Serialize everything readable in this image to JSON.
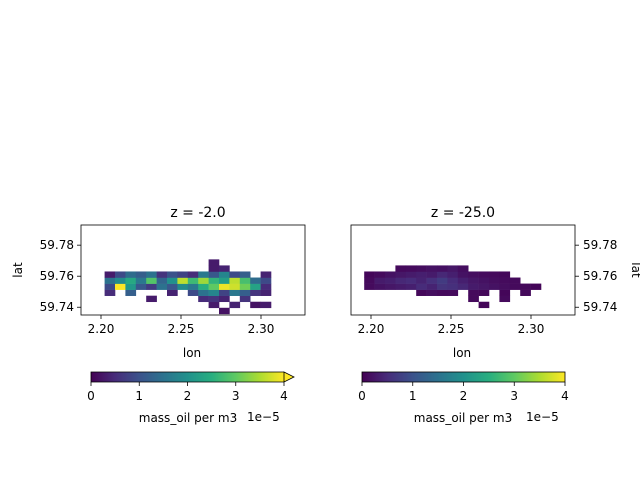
{
  "figure": {
    "background": "#ffffff"
  },
  "chart_data": [
    {
      "type": "heatmap",
      "title": "z = -2.0",
      "xlabel": "lon",
      "ylabel": "lat",
      "xticks": [
        2.2,
        2.25,
        2.3
      ],
      "xtick_labels": [
        "2.20",
        "2.25",
        "2.30"
      ],
      "yticks": [
        59.74,
        59.76,
        59.78
      ],
      "ytick_labels": [
        "59.74",
        "59.76",
        "59.78"
      ],
      "xlim": [
        2.1875,
        2.3275
      ],
      "ylim": [
        59.735,
        59.793
      ],
      "y_axis_side": "left",
      "grid": false,
      "colormap": "viridis",
      "cell_lon": [
        2.2055,
        2.212,
        2.2185,
        2.225,
        2.2315,
        2.238,
        2.2445,
        2.251,
        2.2575,
        2.264,
        2.2705,
        2.277,
        2.2835,
        2.29,
        2.2965,
        2.303
      ],
      "cell_lat": [
        59.7377,
        59.7416,
        59.7455,
        59.7494,
        59.7533,
        59.7572,
        59.7611,
        59.765,
        59.7689
      ],
      "cell_lon_step": 0.0065,
      "cell_lat_step": 0.0039,
      "values_1e5": [
        [
          null,
          null,
          null,
          null,
          null,
          null,
          null,
          null,
          null,
          null,
          null,
          0.2,
          null,
          null,
          null,
          null
        ],
        [
          null,
          null,
          null,
          null,
          null,
          null,
          null,
          null,
          null,
          null,
          0.3,
          null,
          0.4,
          null,
          0.2,
          0.3
        ],
        [
          null,
          null,
          null,
          null,
          0.3,
          null,
          null,
          null,
          null,
          0.5,
          0.6,
          0.4,
          null,
          0.6,
          null,
          null
        ],
        [
          0.5,
          null,
          1.2,
          null,
          null,
          null,
          0.4,
          null,
          0.9,
          1.5,
          1.8,
          0.8,
          1.6,
          1.2,
          0.6,
          0.4
        ],
        [
          0.9,
          4.0,
          2.1,
          1.1,
          0.7,
          1.5,
          1.1,
          1.9,
          1.6,
          2.5,
          3.0,
          3.9,
          3.7,
          3.1,
          2.3,
          0.5
        ],
        [
          1.5,
          1.9,
          2.4,
          1.6,
          2.9,
          1.3,
          2.0,
          3.6,
          2.7,
          3.4,
          2.6,
          2.2,
          3.6,
          2.8,
          1.4,
          0.9
        ],
        [
          0.3,
          0.9,
          1.4,
          1.2,
          1.5,
          0.6,
          1.0,
          0.8,
          0.5,
          1.6,
          1.1,
          1.8,
          0.9,
          1.2,
          null,
          0.4
        ],
        [
          null,
          null,
          null,
          null,
          null,
          null,
          null,
          null,
          null,
          null,
          0.3,
          0.4,
          null,
          null,
          null,
          null
        ],
        [
          null,
          null,
          null,
          null,
          null,
          null,
          null,
          null,
          null,
          null,
          0.3,
          null,
          null,
          null,
          null,
          null
        ]
      ],
      "colorbar": {
        "label": "mass_oil per m3",
        "offset_text": "1e−5",
        "ticks": [
          0,
          1,
          2,
          3,
          4
        ],
        "tick_labels": [
          "0",
          "1",
          "2",
          "3",
          "4"
        ],
        "range": [
          0,
          4
        ],
        "extend": "max"
      }
    },
    {
      "type": "heatmap",
      "title": "z = -25.0",
      "xlabel": "lon",
      "ylabel": "lat",
      "xticks": [
        2.2,
        2.25,
        2.3
      ],
      "xtick_labels": [
        "2.20",
        "2.25",
        "2.30"
      ],
      "yticks": [
        59.74,
        59.76,
        59.78
      ],
      "ytick_labels": [
        "59.74",
        "59.76",
        "59.78"
      ],
      "xlim": [
        2.1875,
        2.3275
      ],
      "ylim": [
        59.735,
        59.793
      ],
      "y_axis_side": "right",
      "grid": false,
      "colormap": "viridis",
      "cell_lon": [
        2.199,
        2.2055,
        2.212,
        2.2185,
        2.225,
        2.2315,
        2.238,
        2.2445,
        2.251,
        2.2575,
        2.264,
        2.2705,
        2.277,
        2.2835,
        2.29,
        2.2965,
        2.303
      ],
      "cell_lat": [
        59.7416,
        59.7455,
        59.7494,
        59.7533,
        59.7572,
        59.7611,
        59.765
      ],
      "cell_lon_step": 0.0065,
      "cell_lat_step": 0.0039,
      "values_1e5": [
        [
          null,
          null,
          null,
          null,
          null,
          null,
          null,
          null,
          null,
          null,
          null,
          0.05,
          null,
          null,
          null,
          null,
          null
        ],
        [
          null,
          null,
          null,
          null,
          null,
          null,
          null,
          null,
          null,
          null,
          0.1,
          null,
          null,
          0.1,
          null,
          null,
          null
        ],
        [
          null,
          null,
          null,
          null,
          null,
          0.08,
          0.15,
          0.1,
          0.12,
          null,
          0.1,
          0.08,
          null,
          0.06,
          null,
          0.08,
          null
        ],
        [
          0.12,
          0.2,
          0.25,
          0.3,
          0.35,
          0.5,
          0.4,
          0.6,
          0.55,
          0.45,
          0.3,
          0.25,
          0.2,
          0.15,
          0.1,
          0.08,
          0.05
        ],
        [
          0.1,
          0.3,
          0.35,
          0.45,
          0.5,
          0.4,
          0.55,
          0.7,
          0.5,
          0.35,
          0.25,
          0.2,
          0.15,
          0.12,
          0.1,
          null,
          null
        ],
        [
          0.06,
          0.12,
          0.2,
          0.25,
          0.3,
          0.35,
          0.3,
          0.45,
          0.35,
          0.2,
          0.15,
          0.12,
          0.1,
          0.08,
          null,
          null,
          null
        ],
        [
          null,
          null,
          null,
          0.1,
          0.12,
          0.15,
          0.2,
          0.18,
          0.25,
          0.15,
          null,
          null,
          null,
          null,
          null,
          null,
          null
        ]
      ],
      "colorbar": {
        "label": "mass_oil per m3",
        "offset_text": "1e−5",
        "ticks": [
          0,
          1,
          2,
          3,
          4
        ],
        "tick_labels": [
          "0",
          "1",
          "2",
          "3",
          "4"
        ],
        "range": [
          0,
          4
        ],
        "extend": "neither"
      }
    }
  ]
}
